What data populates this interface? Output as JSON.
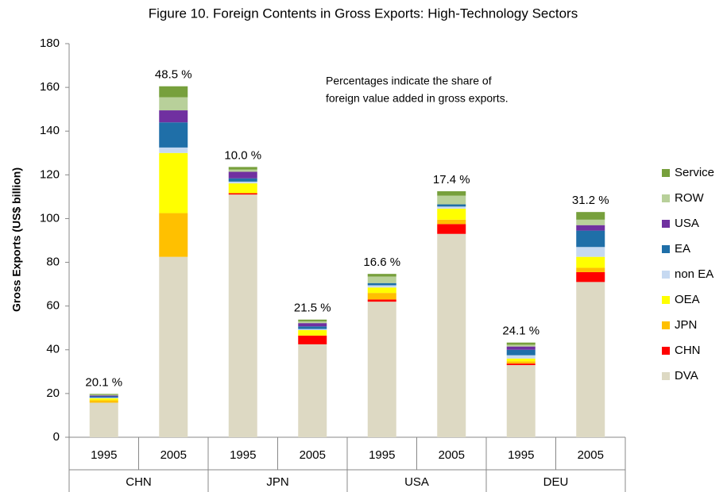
{
  "chart_data": {
    "type": "stacked_bar",
    "title": "Figure 10. Foreign Contents in Gross Exports: High-Technology Sectors",
    "y_label": "Gross Exports  (US$ billion)",
    "annotation": [
      "Percentages indicate the share of",
      "foreign value added in gross exports."
    ],
    "categories": [
      "1995",
      "2005",
      "1995",
      "2005",
      "1995",
      "2005",
      "1995",
      "2005"
    ],
    "groups": [
      "CHN",
      "JPN",
      "USA",
      "DEU"
    ],
    "bar_labels": [
      "20.1 %",
      "48.5 %",
      "10.0 %",
      "21.5 %",
      "16.6 %",
      "17.4 %",
      "24.1 %",
      "31.2 %"
    ],
    "ylim": [
      0,
      180
    ],
    "yticks": [
      0,
      20,
      40,
      60,
      80,
      100,
      120,
      140,
      160,
      180
    ],
    "grid": false,
    "legend": "right",
    "series": [
      {
        "name": "DVA",
        "color": "#ddd9c3",
        "values": [
          15.8,
          82.5,
          111,
          42.5,
          62,
          93,
          33,
          71
        ]
      },
      {
        "name": "CHN",
        "color": "#ff0000",
        "values": [
          0,
          0,
          0.6,
          4,
          1,
          4.5,
          0.7,
          4.5
        ]
      },
      {
        "name": "JPN",
        "color": "#ffc000",
        "values": [
          1.1,
          20,
          0,
          0,
          3,
          2,
          1,
          2
        ]
      },
      {
        "name": "OEA",
        "color": "#ffff00",
        "values": [
          0.9,
          27.5,
          4.5,
          2.5,
          2.5,
          5,
          1.3,
          5
        ]
      },
      {
        "name": "non EA",
        "color": "#c6d9f1",
        "values": [
          0.3,
          2.5,
          0.8,
          0.5,
          1,
          1,
          1.5,
          4.5
        ]
      },
      {
        "name": "EA",
        "color": "#1f6fa8",
        "values": [
          0.6,
          11.5,
          1.5,
          1.2,
          1,
          1,
          2.5,
          7.5
        ]
      },
      {
        "name": "USA",
        "color": "#7030a0",
        "values": [
          0.4,
          5.5,
          3,
          1.5,
          0,
          0,
          1.5,
          2.5
        ]
      },
      {
        "name": "ROW",
        "color": "#b8d09a",
        "values": [
          0.3,
          6,
          1,
          0.8,
          3,
          4,
          0.8,
          2.5
        ]
      },
      {
        "name": "Service",
        "color": "#77a03c",
        "values": [
          0.4,
          5,
          1.2,
          0.8,
          1.2,
          2,
          1,
          3.5
        ]
      }
    ]
  }
}
